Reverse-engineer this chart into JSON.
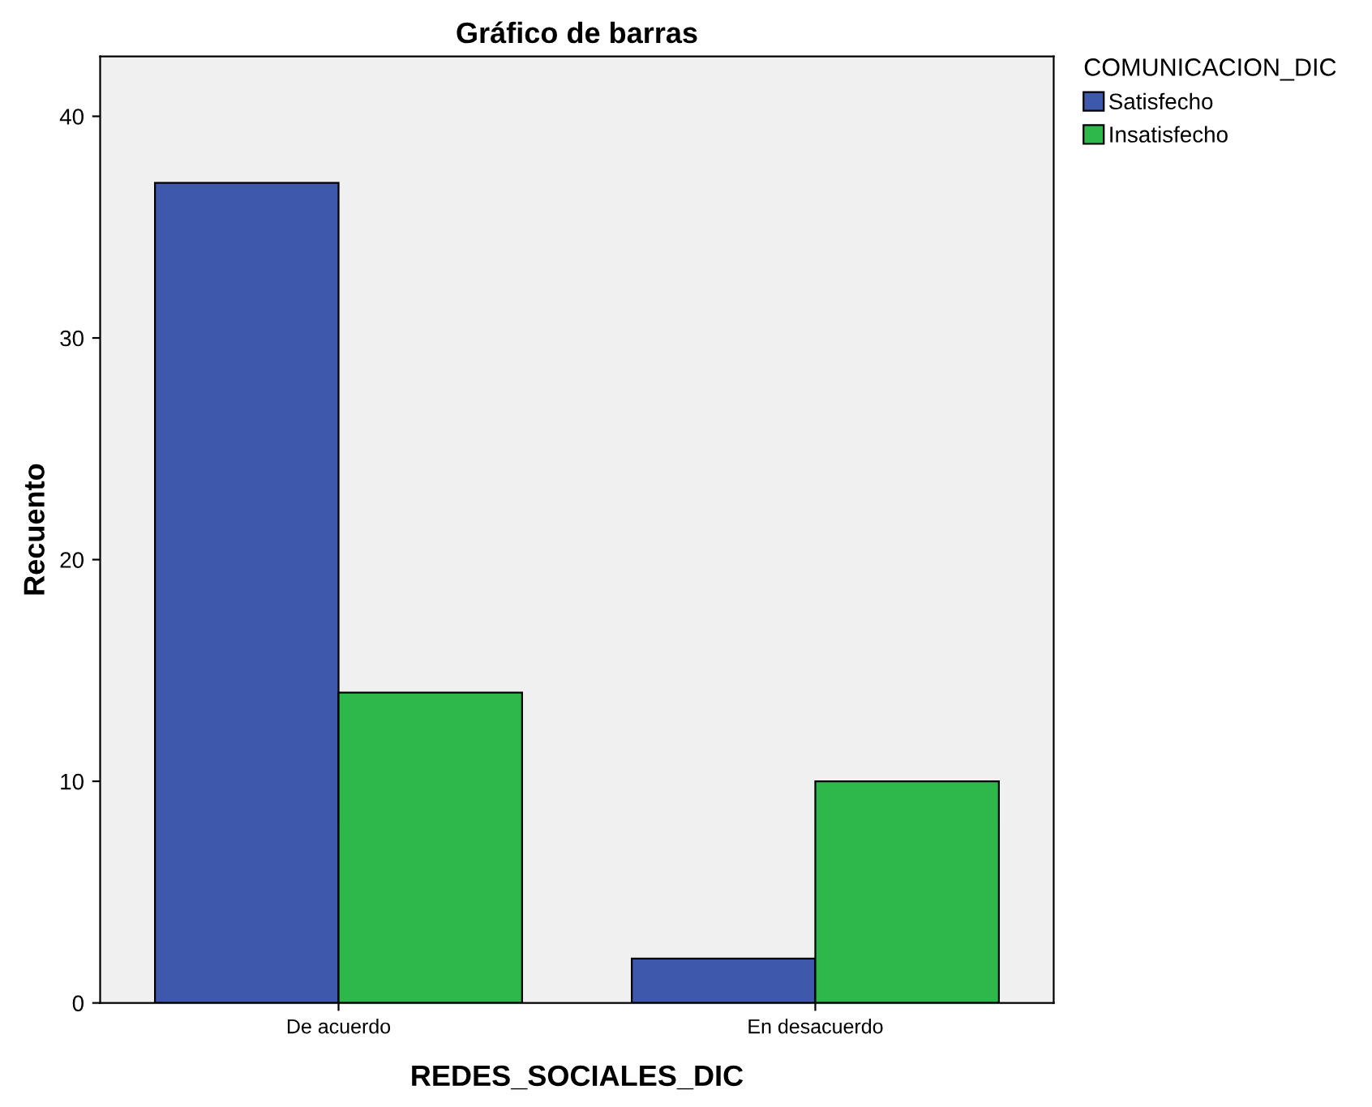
{
  "chart_data": {
    "type": "bar",
    "title": "Gráfico de barras",
    "xlabel": "REDES_SOCIALES_DIC",
    "ylabel": "Recuento",
    "legend_title": "COMUNICACION_DIC",
    "categories": [
      "De acuerdo",
      "En desacuerdo"
    ],
    "series": [
      {
        "name": "Satisfecho",
        "color": "#3e58ac",
        "values": [
          37,
          2
        ]
      },
      {
        "name": "Insatisfecho",
        "color": "#2eb84b",
        "values": [
          14,
          10
        ]
      }
    ],
    "ylim": [
      0,
      42.7
    ],
    "yticks": [
      0,
      10,
      20,
      30,
      40
    ],
    "grid": false,
    "legend": "top right"
  }
}
